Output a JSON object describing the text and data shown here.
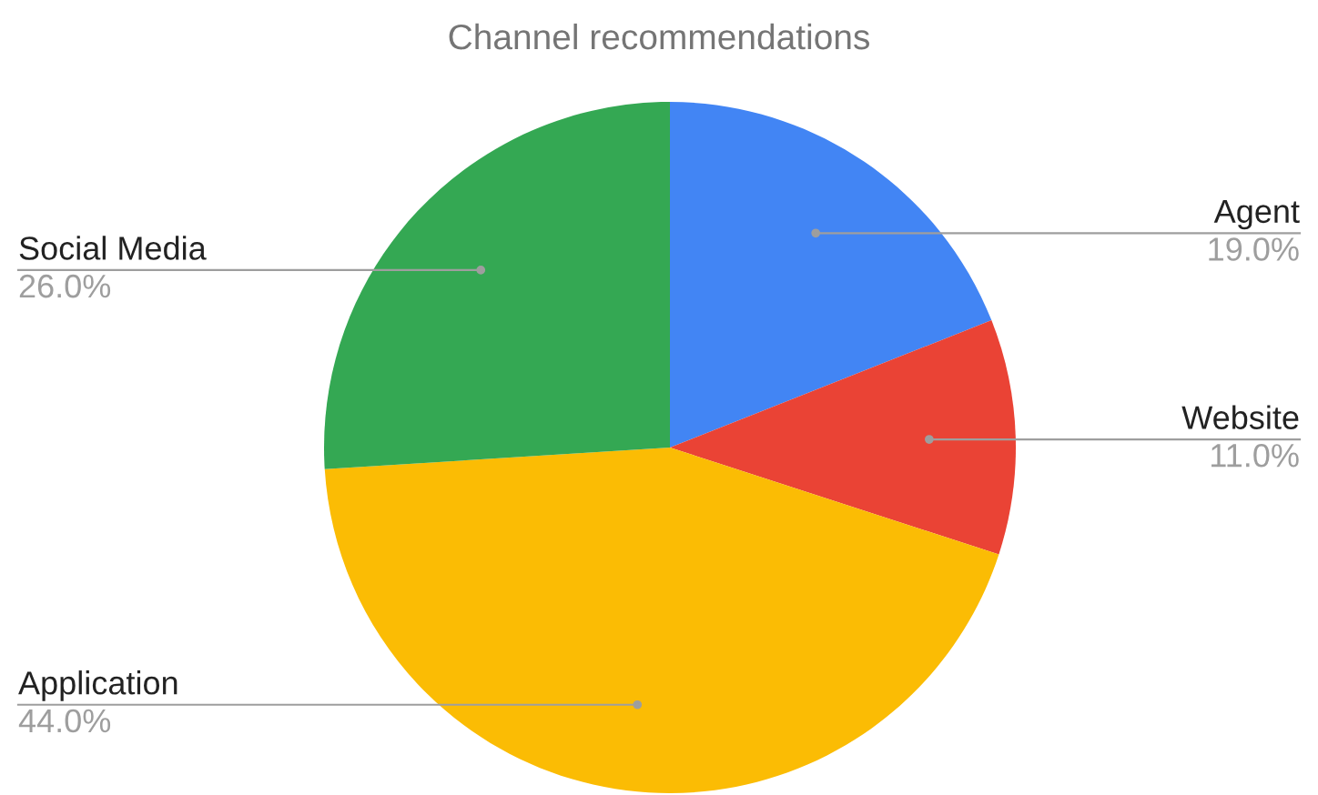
{
  "chart_data": {
    "type": "pie",
    "title": "Channel recommendations",
    "categories": [
      "Agent",
      "Website",
      "Application",
      "Social Media"
    ],
    "values": [
      19,
      11,
      44,
      26
    ],
    "colors": [
      "#4285f4",
      "#ea4335",
      "#fbbc04",
      "#34a853"
    ],
    "value_labels": [
      "19.0%",
      "11.0%",
      "44.0%",
      "26.0%"
    ],
    "legend": false
  }
}
